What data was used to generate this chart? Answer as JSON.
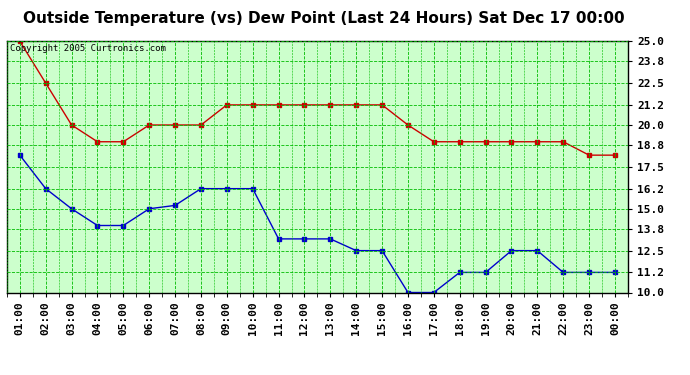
{
  "title": "Outside Temperature (vs) Dew Point (Last 24 Hours) Sat Dec 17 00:00",
  "copyright": "Copyright 2005 Curtronics.com",
  "x_labels": [
    "01:00",
    "02:00",
    "03:00",
    "04:00",
    "05:00",
    "06:00",
    "07:00",
    "08:00",
    "09:00",
    "10:00",
    "11:00",
    "12:00",
    "13:00",
    "14:00",
    "15:00",
    "16:00",
    "17:00",
    "18:00",
    "19:00",
    "20:00",
    "21:00",
    "22:00",
    "23:00",
    "00:00"
  ],
  "temp_values": [
    25.0,
    22.5,
    20.0,
    19.0,
    19.0,
    20.0,
    20.0,
    20.0,
    21.2,
    21.2,
    21.2,
    21.2,
    21.2,
    21.2,
    21.2,
    20.0,
    19.0,
    19.0,
    19.0,
    19.0,
    19.0,
    19.0,
    18.2,
    18.2
  ],
  "dew_values": [
    18.2,
    16.2,
    15.0,
    14.0,
    14.0,
    15.0,
    15.2,
    16.2,
    16.2,
    16.2,
    13.2,
    13.2,
    13.2,
    12.5,
    12.5,
    10.0,
    10.0,
    11.2,
    11.2,
    12.5,
    12.5,
    11.2,
    11.2,
    11.2
  ],
  "temp_color": "#cc0000",
  "dew_color": "#0000cc",
  "fig_bg_color": "#ffffff",
  "plot_bg_color": "#ccffcc",
  "grid_color": "#00bb00",
  "border_color": "#000000",
  "y_min": 10.0,
  "y_max": 25.0,
  "y_ticks": [
    10.0,
    11.2,
    12.5,
    13.8,
    15.0,
    16.2,
    17.5,
    18.8,
    20.0,
    21.2,
    22.5,
    23.8,
    25.0
  ],
  "title_fontsize": 11,
  "tick_fontsize": 8,
  "copyright_fontsize": 6.5
}
